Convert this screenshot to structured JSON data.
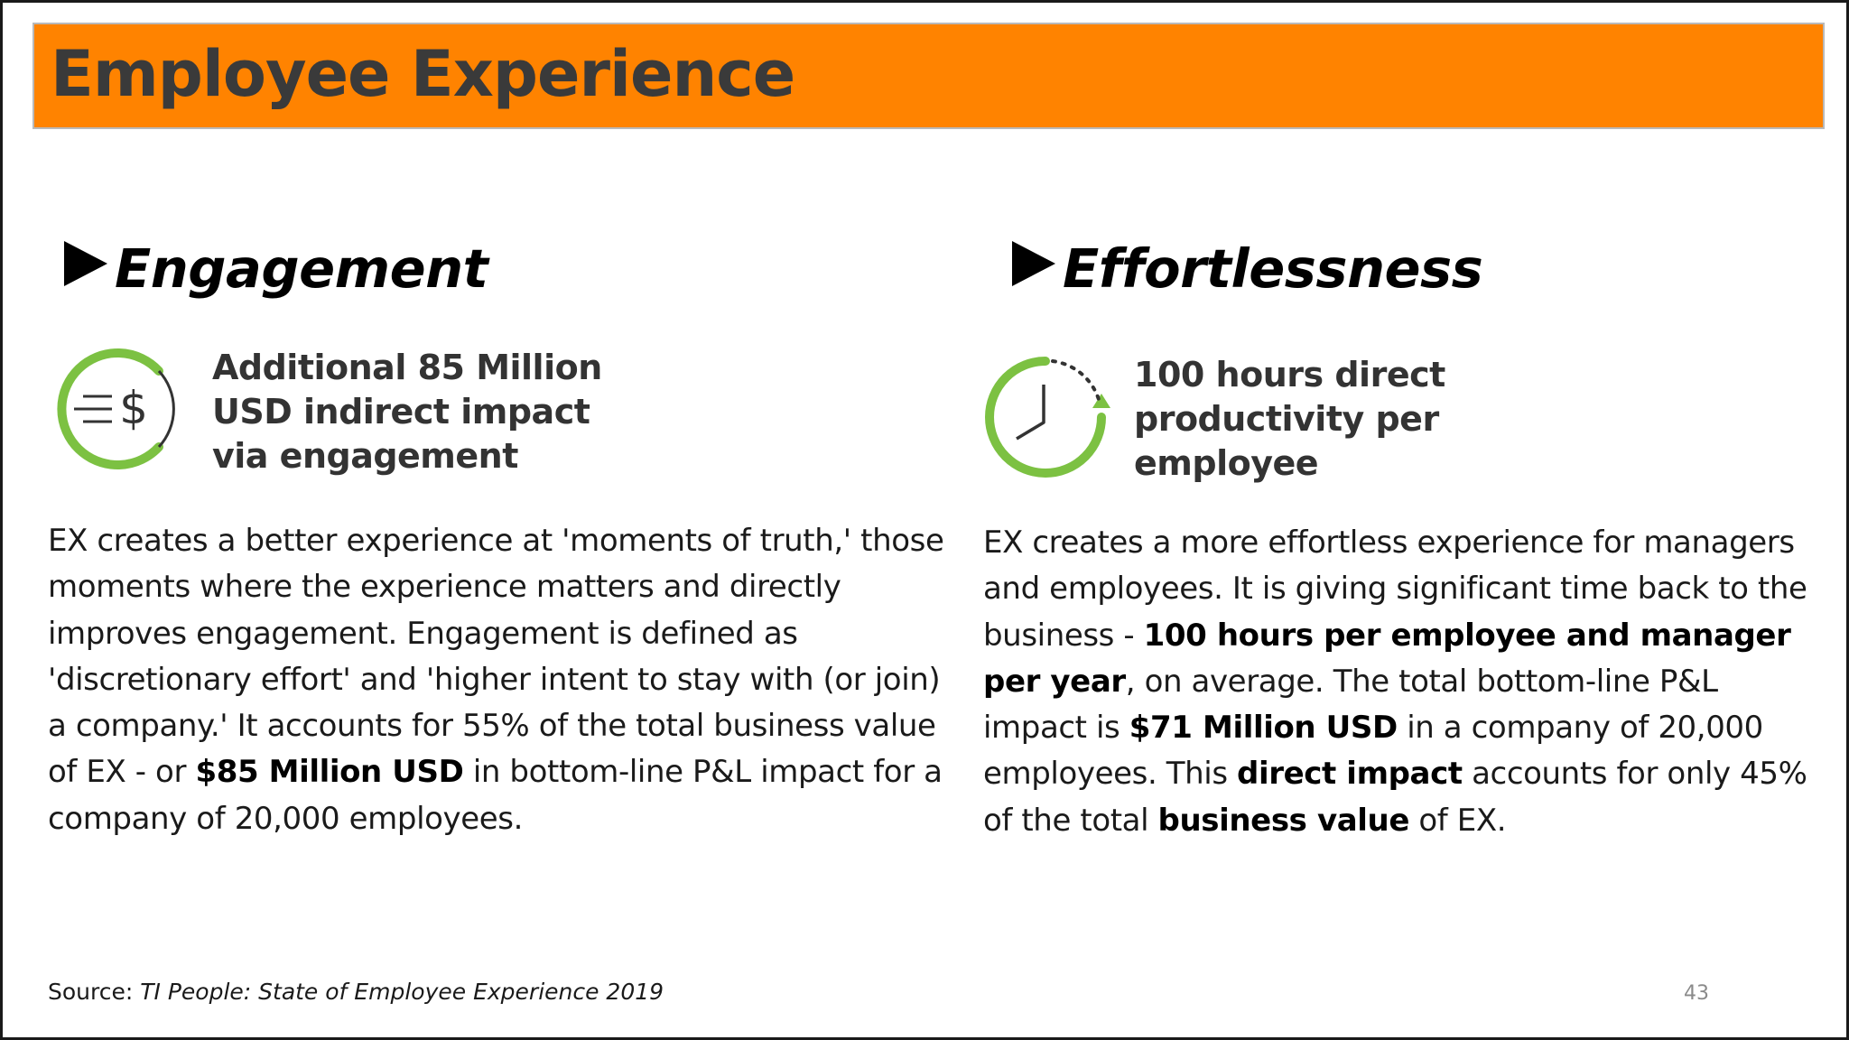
{
  "title": "Employee Experience",
  "colors": {
    "title_bar": "#ff8300",
    "icon_green": "#7cc142",
    "icon_dark": "#333333"
  },
  "left": {
    "heading": "Engagement",
    "icon": "dollar-cycle-icon",
    "stat": [
      "Additional 85 Million",
      "USD indirect impact",
      "via engagement"
    ],
    "paragraph": {
      "p1": "EX creates a better experience at 'moments of truth,' those moments where the experience matters and directly improves engagement. Engagement is defined as 'discretionary effort' and 'higher intent to stay with (or join) a company.' It accounts for 55% of the total business value of EX - or ",
      "b1": "$85 Million USD",
      "p2": " in bottom-line P&L impact for a company of 20,000 employees."
    }
  },
  "right": {
    "heading": "Effortlessness",
    "icon": "clock-cycle-icon",
    "stat": [
      "100 hours direct",
      "productivity per",
      "employee"
    ],
    "paragraph": {
      "p1": "EX creates a more effortless experience for managers and employees. It is giving significant time back to the business - ",
      "b1": "100 hours per employee and manager per year",
      "p2": ", on average. The total bottom-line P&L impact is ",
      "b2": "$71 Million USD",
      "p3": " in a company of 20,000 employees. This ",
      "b3": "direct impact",
      "p4": " accounts for only 45% of the total ",
      "b4": "business value",
      "p5": " of EX."
    }
  },
  "source": {
    "label": "Source: ",
    "title": "TI People: State of Employee Experience 2019"
  },
  "page_number": "43"
}
